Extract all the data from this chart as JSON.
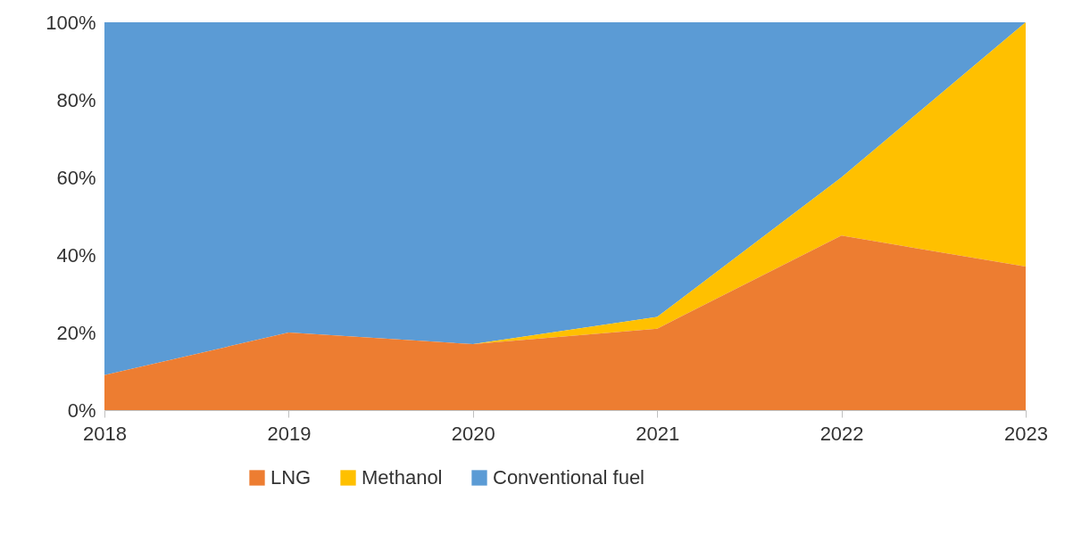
{
  "chart_data": {
    "type": "area",
    "stacked": true,
    "categories": [
      "2018",
      "2019",
      "2020",
      "2021",
      "2022",
      "2023"
    ],
    "series": [
      {
        "name": "LNG",
        "color": "#ed7d31",
        "values": [
          9,
          20,
          17,
          21,
          45,
          37
        ]
      },
      {
        "name": "Methanol",
        "color": "#ffc000",
        "values": [
          null,
          null,
          0,
          3,
          15,
          63
        ]
      },
      {
        "name": "Conventional fuel",
        "color": "#5b9bd5",
        "values": [
          91,
          80,
          83,
          76,
          40,
          0
        ]
      }
    ],
    "ylim": [
      0,
      100
    ],
    "yticks": [
      {
        "value": 0,
        "label": "0%"
      },
      {
        "value": 20,
        "label": "20%"
      },
      {
        "value": 40,
        "label": "40%"
      },
      {
        "value": 60,
        "label": "60%"
      },
      {
        "value": 80,
        "label": "80%"
      },
      {
        "value": 100,
        "label": "100%"
      }
    ],
    "grid": false,
    "legend": "bottom"
  }
}
